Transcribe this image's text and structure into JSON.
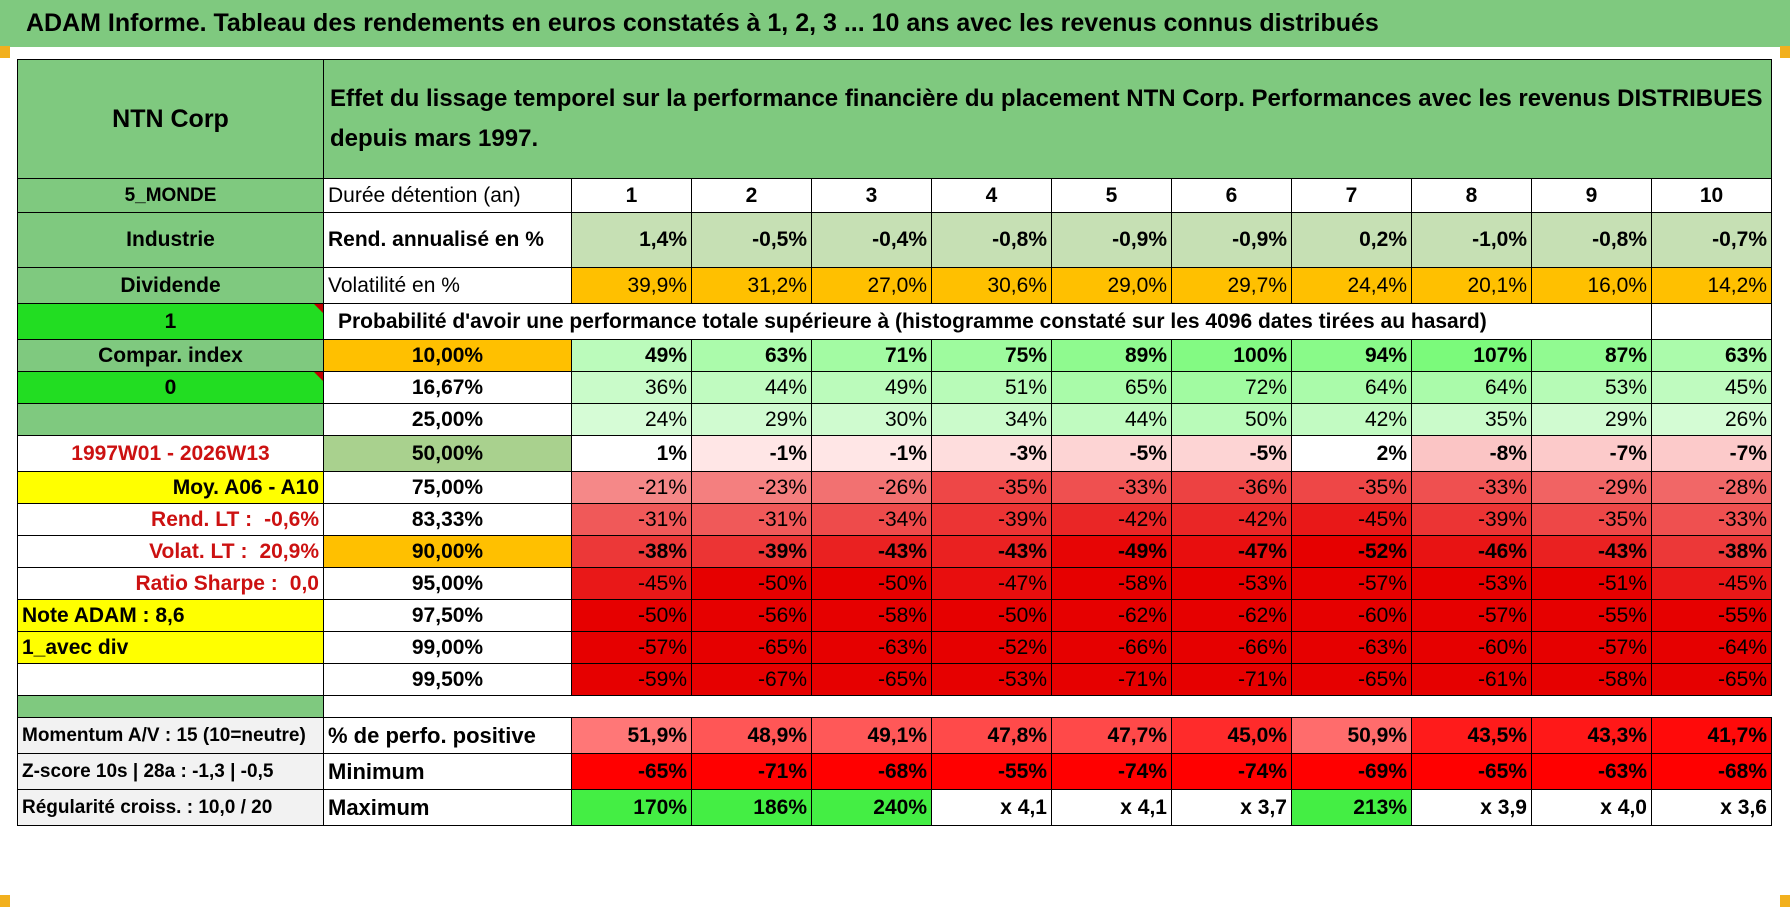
{
  "title": "ADAM Informe. Tableau des rendements en euros constatés à 1, 2, 3 ... 10 ans avec les revenus connus distribués",
  "left": {
    "name": "NTN Corp",
    "region": "5_MONDE",
    "sector": "Industrie",
    "income": "Dividende",
    "flag1": "1",
    "compar": "Compar. index",
    "flag0": "0",
    "period": "1997W01 - 2026W13",
    "moy": "Moy. A06 - A10",
    "rend_lt_label": "Rend. LT :",
    "rend_lt": "-0,6%",
    "volat_lt_label": "Volat. LT :",
    "volat_lt": "20,9%",
    "sharpe_label": "Ratio Sharpe :",
    "sharpe": "0,0",
    "note": "Note ADAM : 8,6",
    "mode": "1_avec div",
    "momentum": "Momentum A/V : 15 (10=neutre)",
    "zscore": "Z-score 10s | 28a : -1,3 | -0,5",
    "regularite": "Régularité croiss. : 10,0 / 20"
  },
  "header_text": "Effet du lissage temporel sur la performance financière du placement NTN Corp. Performances avec les revenus DISTRIBUES depuis mars 1997.",
  "row_labels": {
    "duree": "Durée détention (an)",
    "rend": "Rend. annualisé en %",
    "vol": "Volatilité en %",
    "proba": "Probabilité d'avoir une performance totale supérieure à (histogramme constaté sur les 4096 dates tirées au hasard)",
    "pos": "% de perfo. positive",
    "min": "Minimum",
    "max": "Maximum"
  },
  "years": [
    "1",
    "2",
    "3",
    "4",
    "5",
    "6",
    "7",
    "8",
    "9",
    "10"
  ],
  "rend": [
    "1,4%",
    "-0,5%",
    "-0,4%",
    "-0,8%",
    "-0,9%",
    "-0,9%",
    "0,2%",
    "-1,0%",
    "-0,8%",
    "-0,7%"
  ],
  "vol": [
    "39,9%",
    "31,2%",
    "27,0%",
    "30,6%",
    "29,0%",
    "29,7%",
    "24,4%",
    "20,1%",
    "16,0%",
    "14,2%"
  ],
  "percentiles": [
    {
      "p": "10,00%",
      "v": [
        "49%",
        "63%",
        "71%",
        "75%",
        "89%",
        "100%",
        "94%",
        "107%",
        "87%",
        "63%"
      ]
    },
    {
      "p": "16,67%",
      "v": [
        "36%",
        "44%",
        "49%",
        "51%",
        "65%",
        "72%",
        "64%",
        "64%",
        "53%",
        "45%"
      ]
    },
    {
      "p": "25,00%",
      "v": [
        "24%",
        "29%",
        "30%",
        "34%",
        "44%",
        "50%",
        "42%",
        "35%",
        "29%",
        "26%"
      ]
    },
    {
      "p": "50,00%",
      "v": [
        "1%",
        "-1%",
        "-1%",
        "-3%",
        "-5%",
        "-5%",
        "2%",
        "-8%",
        "-7%",
        "-7%"
      ]
    },
    {
      "p": "75,00%",
      "v": [
        "-21%",
        "-23%",
        "-26%",
        "-35%",
        "-33%",
        "-36%",
        "-35%",
        "-33%",
        "-29%",
        "-28%"
      ]
    },
    {
      "p": "83,33%",
      "v": [
        "-31%",
        "-31%",
        "-34%",
        "-39%",
        "-42%",
        "-42%",
        "-45%",
        "-39%",
        "-35%",
        "-33%"
      ]
    },
    {
      "p": "90,00%",
      "v": [
        "-38%",
        "-39%",
        "-43%",
        "-43%",
        "-49%",
        "-47%",
        "-52%",
        "-46%",
        "-43%",
        "-38%"
      ]
    },
    {
      "p": "95,00%",
      "v": [
        "-45%",
        "-50%",
        "-50%",
        "-47%",
        "-58%",
        "-53%",
        "-57%",
        "-53%",
        "-51%",
        "-45%"
      ]
    },
    {
      "p": "97,50%",
      "v": [
        "-50%",
        "-56%",
        "-58%",
        "-50%",
        "-62%",
        "-62%",
        "-60%",
        "-57%",
        "-55%",
        "-55%"
      ]
    },
    {
      "p": "99,00%",
      "v": [
        "-57%",
        "-65%",
        "-63%",
        "-52%",
        "-66%",
        "-66%",
        "-63%",
        "-60%",
        "-57%",
        "-64%"
      ]
    },
    {
      "p": "99,50%",
      "v": [
        "-59%",
        "-67%",
        "-65%",
        "-53%",
        "-71%",
        "-71%",
        "-65%",
        "-61%",
        "-58%",
        "-65%"
      ]
    }
  ],
  "pos": [
    "51,9%",
    "48,9%",
    "49,1%",
    "47,8%",
    "47,7%",
    "45,0%",
    "50,9%",
    "43,5%",
    "43,3%",
    "41,7%"
  ],
  "min": [
    "-65%",
    "-71%",
    "-68%",
    "-55%",
    "-74%",
    "-74%",
    "-69%",
    "-65%",
    "-63%",
    "-68%"
  ],
  "max": [
    "170%",
    "186%",
    "240%",
    "x 4,1",
    "x 4,1",
    "x 3,7",
    "213%",
    "x 3,9",
    "x 4,0",
    "x 3,6"
  ],
  "colors": {
    "header_green": "#7fc97f",
    "bright_green": "#22dd22",
    "yellow": "#ffff00",
    "orange": "#ffc000",
    "red_text": "#cc1111"
  }
}
